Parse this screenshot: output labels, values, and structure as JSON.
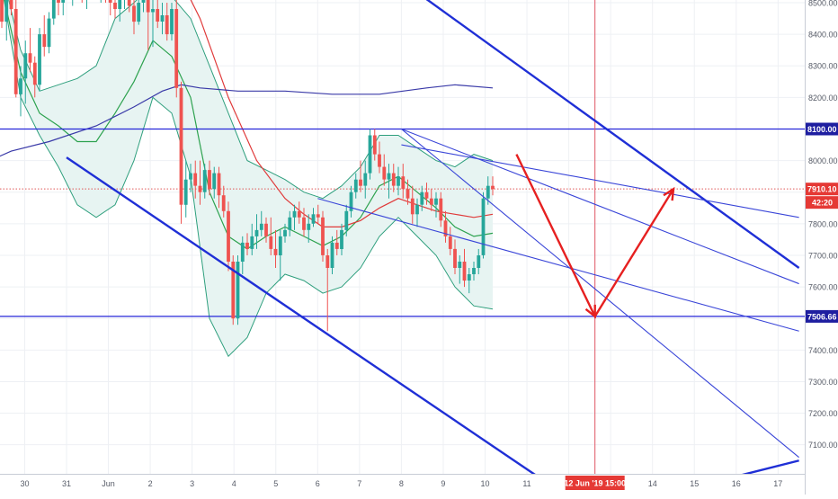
{
  "colors": {
    "bull": "#26a69a",
    "bear": "#ef5350",
    "grid": "#eef0f4",
    "hline": "#2626d9",
    "trend_bold": "#1f2fd6",
    "trend_thin": "#3a46d8",
    "bb_fill": "#e7f4f2",
    "bb_band": "#2e9f7d",
    "basis": "#2da24f",
    "ma_red": "#e03a3a",
    "ma_navy": "#3a3aa8",
    "projection": "#e62020",
    "price_dotted": "#e05555",
    "vline": "#e05565",
    "axis_text": "#555a66"
  },
  "axis_labels": {
    "y_ticks": [
      "8500.00",
      "8400.00",
      "8300.00",
      "8200.00",
      "8100.00",
      "8000.00",
      "7900.00",
      "7800.00",
      "7700.00",
      "7600.00",
      "7500.00",
      "7400.00",
      "7300.00",
      "7200.00",
      "7100.00"
    ],
    "x_ticks": [
      "30",
      "31",
      "Jun",
      "2",
      "3",
      "4",
      "5",
      "6",
      "7",
      "8",
      "9",
      "10",
      "11",
      "12",
      "13",
      "14",
      "15",
      "16",
      "17"
    ]
  },
  "price_tags": {
    "level_high": "8100.00",
    "level_low": "7506.66",
    "last_price": "7910.10",
    "countdown": "42:20"
  },
  "time_tag": "12 Jun '19   15:00",
  "chart_data": {
    "type": "candlestick",
    "y_range": [
      7040,
      8550
    ],
    "x_range": [
      "2019-05-29T12:00",
      "2019-06-17T12:00"
    ],
    "horizontal_levels": [
      8100.0,
      7506.66
    ],
    "last_price": 7910.1,
    "cursor_time": "2019-06-12T15:00",
    "candles_ohlc": [
      [
        8520,
        8610,
        8420,
        8440
      ],
      [
        8440,
        8560,
        8380,
        8520
      ],
      [
        8520,
        8575,
        8460,
        8480
      ],
      [
        8480,
        8530,
        8200,
        8210
      ],
      [
        8210,
        8300,
        8140,
        8260
      ],
      [
        8260,
        8380,
        8180,
        8340
      ],
      [
        8340,
        8420,
        8280,
        8310
      ],
      [
        8310,
        8330,
        8200,
        8240
      ],
      [
        8240,
        8420,
        8220,
        8400
      ],
      [
        8400,
        8460,
        8330,
        8360
      ],
      [
        8360,
        8470,
        8340,
        8450
      ],
      [
        8450,
        8560,
        8430,
        8520
      ],
      [
        8520,
        8580,
        8460,
        8500
      ],
      [
        8500,
        8600,
        8460,
        8560
      ],
      [
        8560,
        8620,
        8510,
        8530
      ],
      [
        8530,
        8600,
        8490,
        8580
      ],
      [
        8580,
        8640,
        8540,
        8560
      ],
      [
        8560,
        8610,
        8500,
        8520
      ],
      [
        8520,
        8600,
        8480,
        8560
      ],
      [
        8560,
        8620,
        8520,
        8580
      ],
      [
        8580,
        8620,
        8520,
        8540
      ],
      [
        8540,
        8600,
        8500,
        8560
      ],
      [
        8560,
        8620,
        8500,
        8530
      ],
      [
        8530,
        8580,
        8460,
        8500
      ],
      [
        8500,
        8560,
        8450,
        8480
      ],
      [
        8480,
        8540,
        8440,
        8510
      ],
      [
        8510,
        8560,
        8480,
        8520
      ],
      [
        8520,
        8570,
        8470,
        8490
      ],
      [
        8490,
        8540,
        8400,
        8440
      ],
      [
        8440,
        8520,
        8430,
        8500
      ],
      [
        8500,
        8580,
        8470,
        8540
      ],
      [
        8540,
        8560,
        8350,
        8470
      ],
      [
        8470,
        8510,
        8360,
        8480
      ],
      [
        8480,
        8520,
        8420,
        8440
      ],
      [
        8440,
        8500,
        8400,
        8460
      ],
      [
        8460,
        8500,
        8380,
        8400
      ],
      [
        8400,
        8500,
        8380,
        8480
      ],
      [
        8480,
        8510,
        8200,
        8230
      ],
      [
        8230,
        8250,
        7800,
        7860
      ],
      [
        7860,
        8000,
        7820,
        7940
      ],
      [
        7940,
        7990,
        7900,
        7960
      ],
      [
        7960,
        8000,
        7880,
        7920
      ],
      [
        7920,
        8000,
        7860,
        7900
      ],
      [
        7900,
        7990,
        7880,
        7970
      ],
      [
        7970,
        8000,
        7890,
        7910
      ],
      [
        7910,
        7980,
        7880,
        7960
      ],
      [
        7960,
        7980,
        7850,
        7890
      ],
      [
        7890,
        7920,
        7820,
        7840
      ],
      [
        7840,
        7870,
        7650,
        7680
      ],
      [
        7680,
        7700,
        7480,
        7500
      ],
      [
        7500,
        7700,
        7480,
        7680
      ],
      [
        7680,
        7760,
        7640,
        7740
      ],
      [
        7740,
        7770,
        7700,
        7720
      ],
      [
        7720,
        7800,
        7700,
        7760
      ],
      [
        7760,
        7830,
        7720,
        7780
      ],
      [
        7780,
        7840,
        7760,
        7800
      ],
      [
        7800,
        7820,
        7740,
        7760
      ],
      [
        7760,
        7820,
        7700,
        7720
      ],
      [
        7720,
        7780,
        7660,
        7700
      ],
      [
        7700,
        7780,
        7620,
        7760
      ],
      [
        7760,
        7800,
        7740,
        7780
      ],
      [
        7780,
        7840,
        7760,
        7820
      ],
      [
        7820,
        7860,
        7780,
        7840
      ],
      [
        7840,
        7870,
        7800,
        7820
      ],
      [
        7820,
        7850,
        7760,
        7780
      ],
      [
        7780,
        7830,
        7740,
        7800
      ],
      [
        7800,
        7850,
        7790,
        7830
      ],
      [
        7830,
        7860,
        7800,
        7820
      ],
      [
        7820,
        7840,
        7680,
        7700
      ],
      [
        7700,
        7720,
        7460,
        7660
      ],
      [
        7660,
        7760,
        7640,
        7740
      ],
      [
        7740,
        7780,
        7700,
        7720
      ],
      [
        7720,
        7800,
        7700,
        7780
      ],
      [
        7780,
        7860,
        7760,
        7840
      ],
      [
        7840,
        7920,
        7820,
        7900
      ],
      [
        7900,
        7960,
        7880,
        7940
      ],
      [
        7940,
        8000,
        7900,
        7920
      ],
      [
        7920,
        8000,
        7880,
        7960
      ],
      [
        7960,
        8100,
        7940,
        8080
      ],
      [
        8080,
        8100,
        8000,
        8020
      ],
      [
        8020,
        8060,
        7960,
        7980
      ],
      [
        7980,
        8020,
        7920,
        7940
      ],
      [
        7940,
        7990,
        7880,
        7960
      ],
      [
        7960,
        7990,
        7900,
        7920
      ],
      [
        7920,
        7980,
        7890,
        7950
      ],
      [
        7950,
        7990,
        7880,
        7910
      ],
      [
        7910,
        7940,
        7860,
        7880
      ],
      [
        7880,
        7920,
        7800,
        7830
      ],
      [
        7830,
        7880,
        7790,
        7860
      ],
      [
        7860,
        7920,
        7840,
        7900
      ],
      [
        7900,
        7930,
        7860,
        7880
      ],
      [
        7880,
        7910,
        7840,
        7860
      ],
      [
        7860,
        7900,
        7820,
        7880
      ],
      [
        7880,
        7900,
        7790,
        7810
      ],
      [
        7810,
        7840,
        7740,
        7760
      ],
      [
        7760,
        7790,
        7700,
        7720
      ],
      [
        7720,
        7750,
        7640,
        7660
      ],
      [
        7660,
        7700,
        7610,
        7680
      ],
      [
        7680,
        7720,
        7600,
        7620
      ],
      [
        7620,
        7660,
        7580,
        7640
      ],
      [
        7640,
        7680,
        7620,
        7660
      ],
      [
        7660,
        7720,
        7640,
        7700
      ],
      [
        7700,
        7900,
        7690,
        7880
      ],
      [
        7880,
        7950,
        7860,
        7920
      ],
      [
        7920,
        7950,
        7890,
        7910
      ]
    ],
    "overlays": {
      "bollinger_upper": [
        [
          -1,
          8620
        ],
        [
          0,
          8600
        ],
        [
          4,
          8350
        ],
        [
          8,
          8220
        ],
        [
          12,
          8240
        ],
        [
          16,
          8260
        ],
        [
          20,
          8300
        ],
        [
          24,
          8450
        ],
        [
          28,
          8500
        ],
        [
          32,
          8560
        ],
        [
          36,
          8520
        ],
        [
          40,
          8450
        ],
        [
          44,
          8300
        ],
        [
          48,
          8150
        ],
        [
          52,
          8000
        ],
        [
          56,
          7970
        ],
        [
          60,
          7940
        ],
        [
          64,
          7900
        ],
        [
          68,
          7880
        ],
        [
          72,
          7920
        ],
        [
          76,
          7980
        ],
        [
          80,
          8080
        ],
        [
          84,
          8080
        ],
        [
          88,
          8040
        ],
        [
          92,
          8000
        ],
        [
          96,
          7980
        ],
        [
          100,
          8020
        ],
        [
          104,
          8000
        ]
      ],
      "bollinger_lower": [
        [
          -1,
          8600
        ],
        [
          0,
          8550
        ],
        [
          4,
          8200
        ],
        [
          8,
          8080
        ],
        [
          12,
          7980
        ],
        [
          16,
          7860
        ],
        [
          20,
          7820
        ],
        [
          24,
          7860
        ],
        [
          28,
          8000
        ],
        [
          32,
          8200
        ],
        [
          36,
          8150
        ],
        [
          40,
          7950
        ],
        [
          44,
          7500
        ],
        [
          48,
          7380
        ],
        [
          52,
          7440
        ],
        [
          56,
          7580
        ],
        [
          60,
          7640
        ],
        [
          64,
          7620
        ],
        [
          68,
          7580
        ],
        [
          72,
          7600
        ],
        [
          76,
          7660
        ],
        [
          80,
          7760
        ],
        [
          84,
          7820
        ],
        [
          88,
          7760
        ],
        [
          92,
          7700
        ],
        [
          96,
          7600
        ],
        [
          100,
          7540
        ],
        [
          104,
          7530
        ]
      ],
      "bollinger_basis": [
        [
          -1,
          8610
        ],
        [
          4,
          8280
        ],
        [
          8,
          8150
        ],
        [
          12,
          8110
        ],
        [
          16,
          8060
        ],
        [
          20,
          8060
        ],
        [
          24,
          8150
        ],
        [
          28,
          8250
        ],
        [
          32,
          8380
        ],
        [
          36,
          8330
        ],
        [
          40,
          8200
        ],
        [
          44,
          7900
        ],
        [
          48,
          7760
        ],
        [
          52,
          7720
        ],
        [
          56,
          7760
        ],
        [
          60,
          7790
        ],
        [
          64,
          7760
        ],
        [
          68,
          7730
        ],
        [
          72,
          7760
        ],
        [
          76,
          7820
        ],
        [
          80,
          7920
        ],
        [
          84,
          7950
        ],
        [
          88,
          7900
        ],
        [
          92,
          7850
        ],
        [
          96,
          7790
        ],
        [
          100,
          7760
        ],
        [
          104,
          7770
        ]
      ],
      "ma_red": [
        [
          -1,
          8630
        ],
        [
          10,
          8680
        ],
        [
          20,
          8660
        ],
        [
          30,
          8720
        ],
        [
          37,
          8600
        ],
        [
          42,
          8450
        ],
        [
          48,
          8200
        ],
        [
          54,
          8000
        ],
        [
          60,
          7880
        ],
        [
          64,
          7830
        ],
        [
          68,
          7790
        ],
        [
          72,
          7790
        ],
        [
          76,
          7810
        ],
        [
          80,
          7850
        ],
        [
          84,
          7880
        ],
        [
          88,
          7860
        ],
        [
          92,
          7840
        ],
        [
          96,
          7830
        ],
        [
          100,
          7820
        ],
        [
          104,
          7830
        ]
      ],
      "ma_navy": [
        [
          -1,
          8010
        ],
        [
          2,
          8030
        ],
        [
          10,
          8060
        ],
        [
          20,
          8110
        ],
        [
          28,
          8170
        ],
        [
          34,
          8220
        ],
        [
          38,
          8240
        ],
        [
          42,
          8230
        ],
        [
          50,
          8220
        ],
        [
          60,
          8220
        ],
        [
          70,
          8210
        ],
        [
          80,
          8210
        ],
        [
          90,
          8230
        ],
        [
          96,
          8240
        ],
        [
          104,
          8230
        ]
      ]
    },
    "trend_lines_bold": [
      {
        "from": [
          "2019-05-31T00:00",
          8010
        ],
        "to": [
          "2019-06-11T06:00",
          7000
        ]
      },
      {
        "from": [
          "2019-06-06T00:00",
          8760
        ],
        "to": [
          "2019-06-17T12:00",
          7660
        ]
      },
      {
        "from": [
          "2019-06-16T00:00",
          7000
        ],
        "to": [
          "2019-06-17T12:00",
          7050
        ]
      }
    ],
    "trend_lines_thin": [
      {
        "from": [
          "2019-06-06T00:00",
          7880
        ],
        "to": [
          "2019-06-17T12:00",
          7460
        ]
      },
      {
        "from": [
          "2019-06-08T00:00",
          8100
        ],
        "to": [
          "2019-06-17T12:00",
          7610
        ]
      },
      {
        "from": [
          "2019-06-08T00:00",
          8100
        ],
        "to": [
          "2019-06-17T12:00",
          7060
        ]
      },
      {
        "from": [
          "2019-06-08T00:00",
          8050
        ],
        "to": [
          "2019-06-17T12:00",
          7820
        ]
      }
    ],
    "projection_path": [
      [
        "2019-06-10T18:00",
        8020
      ],
      [
        "2019-06-12T15:00",
        7506.66
      ],
      [
        "2019-06-14T12:00",
        7910
      ]
    ]
  }
}
